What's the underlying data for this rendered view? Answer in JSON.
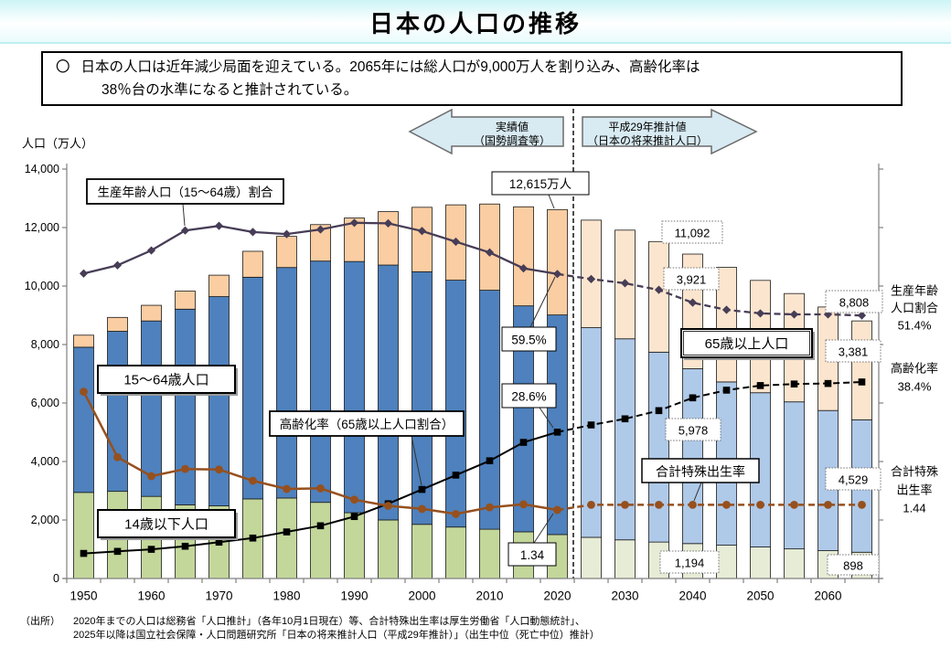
{
  "header": {
    "title": "日本の人口の推移"
  },
  "summary": {
    "bullet": "〇",
    "line1": "日本の人口は近年減少局面を迎えている。2065年には総人口が9,000万人を割り込み、高齢化率は",
    "line2": "38％台の水準になると推計されている。"
  },
  "arrows": {
    "left": {
      "line1": "実績値",
      "line2": "（国勢調査等）"
    },
    "right": {
      "line1": "平成29年推計値",
      "line2": "（日本の将来推計人口）"
    }
  },
  "chart_data": {
    "type": "combo: stacked bar + line",
    "title": "日本の人口の推移",
    "ylabel": "人口（万人）",
    "primary_axis": {
      "label": "人口（万人）",
      "min": 0,
      "max": 14000,
      "tick_step": 2000,
      "tick_labels": [
        "0",
        "2,000",
        "4,000",
        "6,000",
        "8,000",
        "10,000",
        "12,000",
        "14,000"
      ]
    },
    "secondary_pct_axis": {
      "max": 80
    },
    "secondary_tfr_axis": {
      "max": 8
    },
    "grid": "off",
    "categories": [
      1950,
      1955,
      1960,
      1965,
      1970,
      1975,
      1980,
      1985,
      1990,
      1995,
      2000,
      2005,
      2010,
      2015,
      2020,
      2025,
      2030,
      2035,
      2040,
      2045,
      2050,
      2055,
      2060,
      2065
    ],
    "x_tick_labels": [
      "1950",
      "1960",
      "1970",
      "1980",
      "1990",
      "2000",
      "2010",
      "2020",
      "2030",
      "2040",
      "2050",
      "2060"
    ],
    "actual_last_index": 14,
    "actual_through": "2020",
    "series": [
      {
        "name": "14歳以下人口",
        "type": "bar-stack",
        "unit": "万人",
        "values": [
          2943,
          2980,
          2807,
          2517,
          2482,
          2721,
          2751,
          2603,
          2249,
          2001,
          1851,
          1759,
          1684,
          1595,
          1503,
          1407,
          1321,
          1246,
          1194,
          1138,
          1077,
          1012,
          951,
          898
        ]
      },
      {
        "name": "15～64歳人口",
        "type": "bar-stack",
        "unit": "万人",
        "values": [
          4966,
          5473,
          6000,
          6693,
          7157,
          7581,
          7883,
          8251,
          8590,
          8717,
          8638,
          8442,
          8173,
          7728,
          7509,
          7170,
          6875,
          6494,
          5978,
          5584,
          5275,
          5028,
          4793,
          4529
        ]
      },
      {
        "name": "65歳以上人口",
        "type": "bar-stack",
        "unit": "万人",
        "values": [
          411,
          475,
          535,
          618,
          733,
          887,
          1065,
          1247,
          1489,
          1826,
          2204,
          2576,
          2948,
          3387,
          3603,
          3677,
          3716,
          3782,
          3921,
          3919,
          3841,
          3704,
          3540,
          3381
        ]
      },
      {
        "name": "生産年齢人口（15～64歳）割合",
        "type": "line",
        "axis": "percent",
        "unit": "%",
        "values": [
          59.6,
          61.2,
          64.1,
          68.0,
          68.9,
          67.7,
          67.3,
          68.2,
          69.5,
          69.4,
          67.9,
          65.8,
          63.7,
          60.6,
          59.5,
          58.5,
          57.7,
          56.4,
          53.9,
          52.5,
          51.8,
          51.6,
          51.6,
          51.4
        ]
      },
      {
        "name": "高齢化率（65歳以上人口割合）",
        "type": "line",
        "axis": "percent",
        "unit": "%",
        "values": [
          4.9,
          5.3,
          5.7,
          6.3,
          7.1,
          7.9,
          9.1,
          10.3,
          12.1,
          14.6,
          17.4,
          20.2,
          23.0,
          26.6,
          28.6,
          30.0,
          31.2,
          32.8,
          35.3,
          36.8,
          37.7,
          38.0,
          38.1,
          38.4
        ]
      },
      {
        "name": "合計特殊出生率",
        "type": "line",
        "axis": "tfr",
        "unit": "",
        "values": [
          3.65,
          2.37,
          2.0,
          2.14,
          2.13,
          1.91,
          1.75,
          1.76,
          1.54,
          1.42,
          1.36,
          1.26,
          1.39,
          1.45,
          1.34,
          1.44,
          1.44,
          1.44,
          1.44,
          1.44,
          1.44,
          1.44,
          1.44,
          1.44
        ]
      }
    ]
  },
  "series_labels": {
    "working_ratio": "生産年齢人口（15～64歳）割合",
    "working_pop": "15～64歳人口",
    "aging_rate": "高齢化率（65歳以上人口割合）",
    "child_pop": "14歳以下人口",
    "elderly_pop": "65歳以上人口",
    "tfr": "合計特殊出生率"
  },
  "annotations": {
    "total_2020": "12,615万人",
    "working_ratio_2020": "59.5%",
    "aging_rate_2020": "28.6%",
    "tfr_2020": "1.34",
    "total_2040": "11,092",
    "elderly_2040": "3,921",
    "working_2040": "5,978",
    "child_2040": "1,194",
    "total_2065": "8,808",
    "elderly_2065": "3,381",
    "working_2065": "4,529",
    "child_2065": "898"
  },
  "right_labels": {
    "working_ratio": {
      "lines": [
        "生産年齢",
        "人口割合",
        "51.4%"
      ]
    },
    "aging_rate": {
      "lines": [
        "高齢化率",
        "38.4%"
      ]
    },
    "tfr": {
      "lines": [
        "合計特殊",
        "出生率",
        "1.44"
      ]
    }
  },
  "source": {
    "label": "（出所）",
    "line1": "2020年までの人口は総務省「人口推計」（各年10月1日現在）等、合計特殊出生率は厚生労働省「人口動態統計」、",
    "line2": "2025年以降は国立社会保障・人口問題研究所「日本の将来推計人口（平成29年推計）」（出生中位（死亡中位）推計）"
  },
  "colors": {
    "bar_child": "#C3D79B",
    "bar_child_proj": "#E6ECD6",
    "bar_working": "#4E81BD",
    "bar_working_proj": "#AFC9E8",
    "bar_elderly": "#FACDA2",
    "bar_elderly_proj": "#FBE5CE",
    "line_working_ratio": "#473D56",
    "line_aging": "#000000",
    "line_tfr": "#96501E",
    "bar_stroke": "#1a1a1a",
    "arrow_fill": "#D8EAF2",
    "arrow_stroke": "#6b6b6b"
  }
}
